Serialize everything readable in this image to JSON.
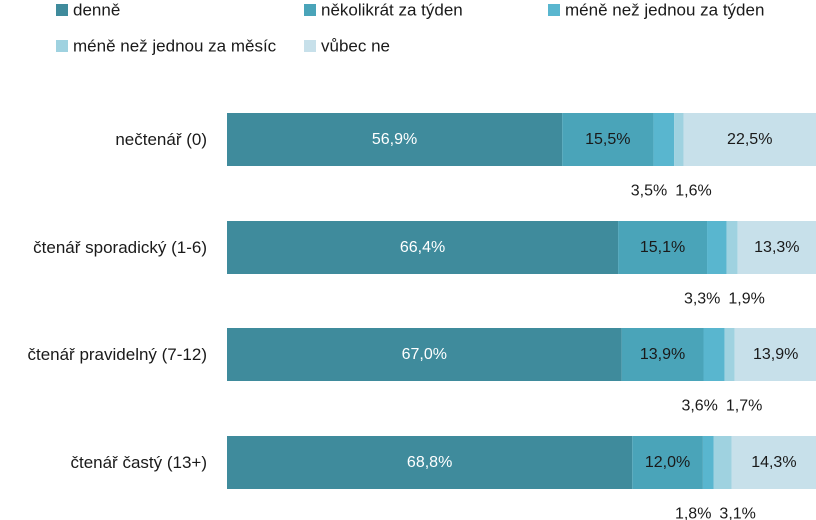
{
  "chart_data": {
    "type": "bar",
    "orientation": "horizontal",
    "stacked": true,
    "percent": true,
    "title": "",
    "xlabel": "",
    "ylabel": "",
    "xlim": [
      0,
      100
    ],
    "legend_position": "top",
    "categories": [
      "nečtenář (0)",
      "čtenář sporadický  (1-6)",
      "čtenář pravidelný  (7-12)",
      "čtenář častý  (13+)"
    ],
    "series": [
      {
        "name": "denně",
        "color": "#3f8b9c",
        "values": [
          56.9,
          66.4,
          67.0,
          68.8
        ],
        "labels": [
          "56,9%",
          "66,4%",
          "67,0%",
          "68,8%"
        ]
      },
      {
        "name": "několikrát za týden",
        "color": "#4aa4b9",
        "values": [
          15.5,
          15.1,
          13.9,
          12.0
        ],
        "labels": [
          "15,5%",
          "15,1%",
          "13,9%",
          "12,0%"
        ]
      },
      {
        "name": "méně než jednou za týden",
        "color": "#59b6cf",
        "values": [
          3.5,
          3.3,
          3.6,
          1.8
        ],
        "labels": [
          "3,5%",
          "3,3%",
          "3,6%",
          "1,8%"
        ]
      },
      {
        "name": "méně než jednou za měsíc",
        "color": "#9fd2e0",
        "values": [
          1.6,
          1.9,
          1.7,
          3.1
        ],
        "labels": [
          "1,6%",
          "1,9%",
          "1,7%",
          "3,1%"
        ]
      },
      {
        "name": "vůbec ne",
        "color": "#c7e0ea",
        "values": [
          22.5,
          13.3,
          13.9,
          14.3
        ],
        "labels": [
          "22,5%",
          "13,3%",
          "13,9%",
          "14,3%"
        ]
      }
    ],
    "grid": false
  }
}
